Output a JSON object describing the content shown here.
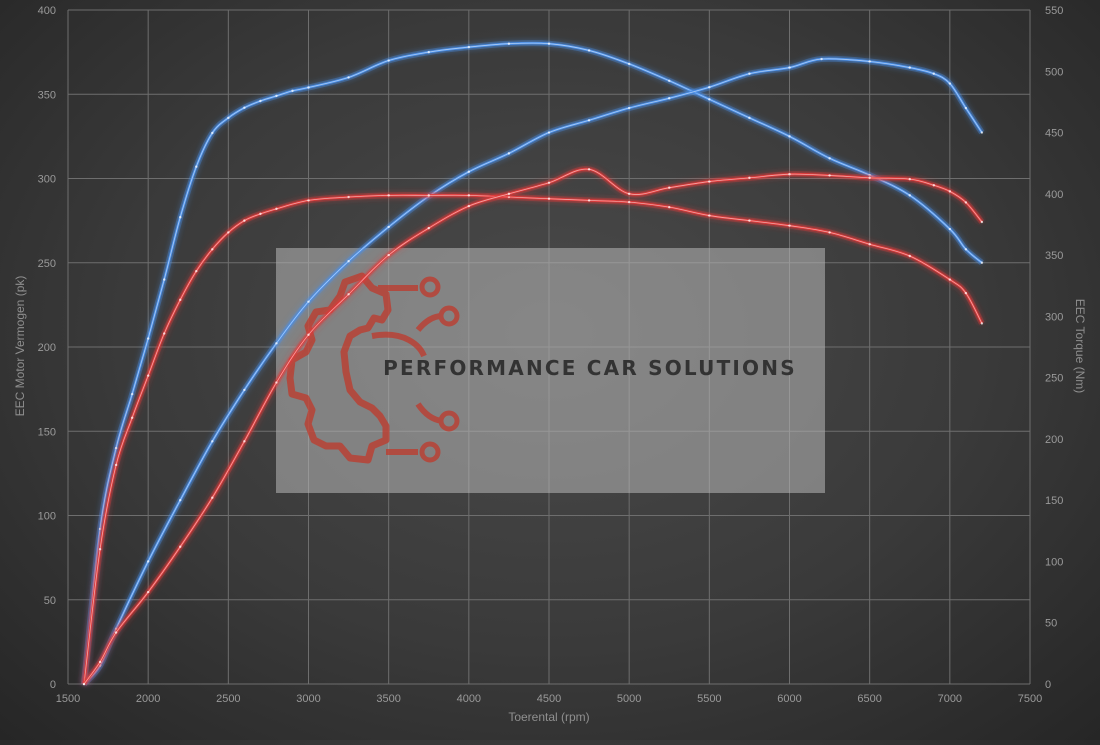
{
  "chart_data": {
    "type": "line",
    "xlabel": "Toerental (rpm)",
    "ylabel_left": "EEC Motor Vermogen (pk)",
    "ylabel_right": "EEC Torque (Nm)",
    "xlim": [
      1500,
      7500
    ],
    "ylim_left": [
      0,
      400
    ],
    "ylim_right": [
      0,
      550
    ],
    "x_ticks": [
      1500,
      2000,
      2500,
      3000,
      3500,
      4000,
      4500,
      5000,
      5500,
      6000,
      6500,
      7000,
      7500
    ],
    "y_ticks_left": [
      0,
      50,
      100,
      150,
      200,
      250,
      300,
      350,
      400
    ],
    "y_ticks_right": [
      0,
      50,
      100,
      150,
      200,
      250,
      300,
      350,
      400,
      450,
      500,
      550
    ],
    "grid": true,
    "series": [
      {
        "axis": "left",
        "color": "#4a8fe8",
        "x": [
          1600,
          1700,
          1800,
          1900,
          2000,
          2100,
          2200,
          2300,
          2400,
          2500,
          2600,
          2700,
          2800,
          2900,
          3000,
          3250,
          3500,
          3750,
          4000,
          4250,
          4500,
          4750,
          5000,
          5250,
          5500,
          5750,
          6000,
          6250,
          6500,
          6750,
          7000,
          7100,
          7200
        ],
        "values": [
          0,
          92,
          140,
          172,
          205,
          240,
          277,
          307,
          327,
          336,
          342,
          346,
          349,
          352,
          354,
          360,
          370,
          375,
          378,
          380,
          380,
          376,
          368,
          358,
          347,
          336,
          325,
          312,
          302,
          290,
          270,
          258,
          250
        ]
      },
      {
        "axis": "right",
        "color": "#4a8fe8",
        "x": [
          1600,
          1700,
          1800,
          2000,
          2200,
          2400,
          2600,
          2800,
          3000,
          3250,
          3500,
          3750,
          4000,
          4250,
          4500,
          4750,
          5000,
          5250,
          5500,
          5750,
          6000,
          6200,
          6500,
          6750,
          6900,
          7000,
          7100,
          7200
        ],
        "values": [
          0,
          15,
          45,
          100,
          150,
          198,
          240,
          278,
          312,
          345,
          373,
          398,
          418,
          433,
          450,
          460,
          470,
          478,
          487,
          498,
          503,
          510,
          508,
          503,
          498,
          490,
          470,
          450
        ]
      },
      {
        "axis": "left",
        "color": "#e03a3a",
        "x": [
          1600,
          1700,
          1800,
          1900,
          2000,
          2100,
          2200,
          2300,
          2400,
          2500,
          2600,
          2700,
          2800,
          3000,
          3250,
          3500,
          3750,
          4000,
          4250,
          4500,
          4750,
          5000,
          5250,
          5500,
          5750,
          6000,
          6250,
          6500,
          6750,
          7000,
          7100,
          7200
        ],
        "values": [
          0,
          80,
          130,
          158,
          183,
          208,
          228,
          245,
          258,
          268,
          275,
          279,
          282,
          287,
          289,
          290,
          290,
          290,
          289,
          288,
          287,
          286,
          283,
          278,
          275,
          272,
          268,
          261,
          254,
          240,
          232,
          214
        ]
      },
      {
        "axis": "right",
        "color": "#e03a3a",
        "x": [
          1600,
          1700,
          1800,
          2000,
          2200,
          2400,
          2600,
          2800,
          3000,
          3250,
          3500,
          3750,
          4000,
          4250,
          4500,
          4750,
          5000,
          5250,
          5500,
          5750,
          6000,
          6250,
          6500,
          6750,
          6900,
          7000,
          7100,
          7200
        ],
        "values": [
          0,
          18,
          42,
          75,
          112,
          152,
          198,
          246,
          285,
          318,
          350,
          372,
          390,
          400,
          409,
          420,
          400,
          405,
          410,
          413,
          416,
          415,
          413,
          412,
          407,
          402,
          393,
          377
        ]
      }
    ]
  },
  "watermark": {
    "brand_name": "PERFORMANCE CAR SOLUTIONS",
    "logo_color": "#c0392b"
  }
}
